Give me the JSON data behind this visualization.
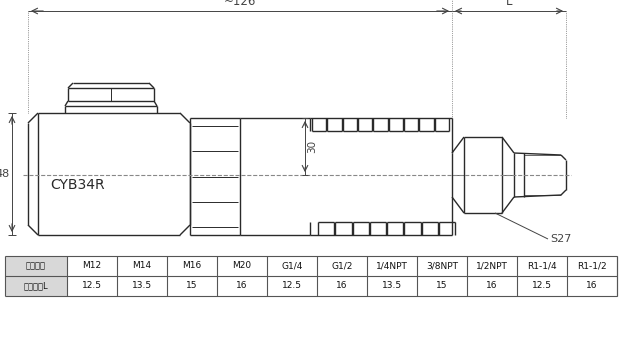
{
  "label_cyb34r": "CYB34R",
  "dim_126": "~126",
  "dim_L": "L",
  "dim_48": "48",
  "dim_30": "30",
  "dim_S27": "S27",
  "table_row1_header": "螺纹规格",
  "table_row2_header": "螺纹长度L",
  "table_row1": [
    "M12",
    "M14",
    "M16",
    "M20",
    "G1/4",
    "G1/2",
    "1/4NPT",
    "3/8NPT",
    "1/2NPT",
    "R1-1/4",
    "R1-1/2"
  ],
  "table_row2": [
    "12.5",
    "13.5",
    "15",
    "16",
    "12.5",
    "16",
    "13.5",
    "15",
    "16",
    "12.5",
    "16"
  ],
  "bg_color": "#ffffff",
  "line_color": "#2a2a2a",
  "dim_color": "#444444",
  "dash_color": "#888888"
}
